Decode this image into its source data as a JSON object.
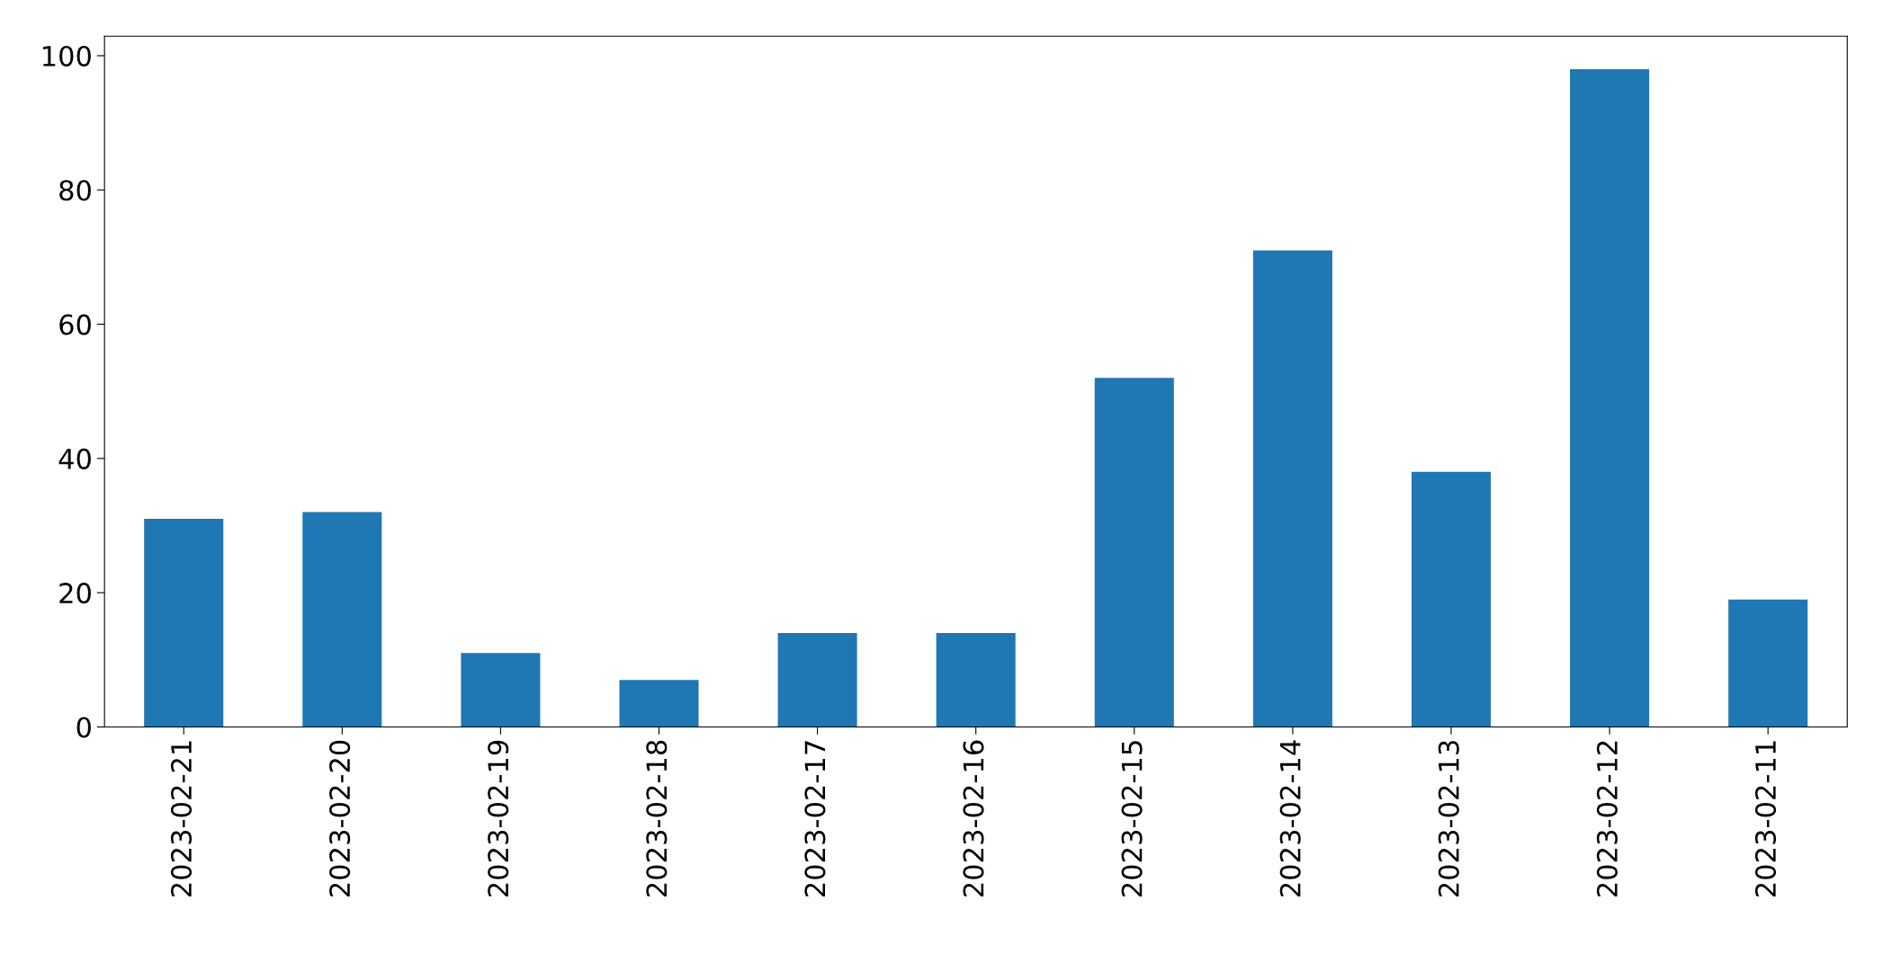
{
  "chart_data": {
    "type": "bar",
    "categories": [
      "2023-02-21",
      "2023-02-20",
      "2023-02-19",
      "2023-02-18",
      "2023-02-17",
      "2023-02-16",
      "2023-02-15",
      "2023-02-14",
      "2023-02-13",
      "2023-02-12",
      "2023-02-11"
    ],
    "values": [
      31,
      32,
      11,
      7,
      14,
      14,
      52,
      71,
      38,
      98,
      19
    ],
    "color": "#1f77b4",
    "ylim": [
      0,
      102.9
    ],
    "yticks": [
      0,
      20,
      40,
      60,
      80,
      100
    ],
    "grid": false,
    "legend": false
  }
}
